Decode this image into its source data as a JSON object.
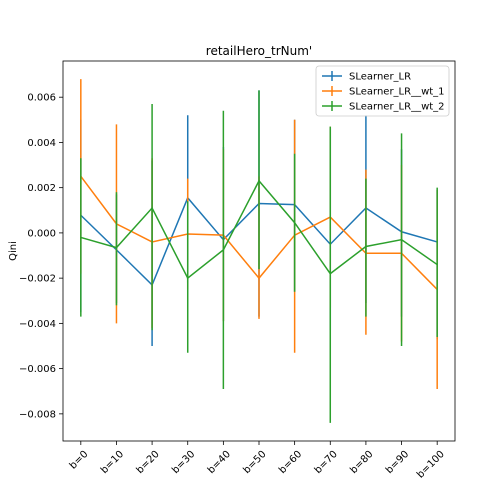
{
  "chart_data": {
    "type": "line",
    "title": "retailHero_trNum'",
    "xlabel": "",
    "ylabel": "Qini",
    "categories": [
      "b=0",
      "b=10",
      "b=20",
      "b=30",
      "b=40",
      "b=50",
      "b=60",
      "b=70",
      "b=80",
      "b=90",
      "b=100"
    ],
    "ylim": [
      -0.0092,
      0.0076
    ],
    "yticks": [
      -0.008,
      -0.006,
      -0.004,
      -0.002,
      0.0,
      0.002,
      0.004,
      0.006
    ],
    "ytick_labels": [
      "−0.008",
      "−0.006",
      "−0.004",
      "−0.002",
      "0.000",
      "0.002",
      "0.004",
      "0.006"
    ],
    "legend_position": "top-right",
    "grid": false,
    "series": [
      {
        "name": "SLearner_LR",
        "color": "#1f77b4",
        "values": [
          0.00078,
          -0.00075,
          -0.0023,
          0.00155,
          -0.0003,
          0.0013,
          0.00125,
          -0.0005,
          0.0011,
          5e-05,
          -0.0004
        ],
        "err_low": [
          -0.0035,
          -0.0031,
          -0.005,
          -0.0022,
          -0.0039,
          -0.0037,
          -0.0026,
          -0.0043,
          -0.0031,
          -0.0037,
          -0.0047
        ],
        "err_high": [
          0.005,
          0.0017,
          0.0032,
          0.0052,
          0.0038,
          0.0063,
          0.005,
          0.0046,
          0.0052,
          0.0037,
          0.0019
        ]
      },
      {
        "name": "SLearner_LR__wt_1",
        "color": "#ff7f0e",
        "values": [
          0.0025,
          0.0004,
          -0.0004,
          -5e-05,
          -0.0001,
          -0.002,
          -0.0001,
          0.0007,
          -0.0009,
          -0.0009,
          -0.0025
        ],
        "err_low": [
          -0.0018,
          -0.004,
          -0.0042,
          -0.0025,
          -0.0039,
          -0.0038,
          -0.0053,
          -0.0033,
          -0.0045,
          -0.0048,
          -0.0069
        ],
        "err_high": [
          0.0068,
          0.0048,
          0.0033,
          0.0024,
          0.0037,
          0.0025,
          0.005,
          0.0047,
          0.0028,
          0.003,
          0.0019
        ]
      },
      {
        "name": "SLearner_LR__wt_2",
        "color": "#2ca02c",
        "values": [
          -0.0002,
          -0.00065,
          0.0011,
          -0.002,
          -0.00075,
          0.0023,
          0.00045,
          -0.0018,
          -0.0006,
          -0.0003,
          -0.0014
        ],
        "err_low": [
          -0.0037,
          -0.0032,
          -0.0043,
          -0.0053,
          -0.0069,
          -0.0016,
          -0.0026,
          -0.0084,
          -0.0037,
          -0.005,
          -0.0046
        ],
        "err_high": [
          0.0033,
          0.0018,
          0.0057,
          0.0014,
          0.0054,
          0.0063,
          0.0035,
          0.0047,
          0.0024,
          0.0044,
          0.002
        ]
      }
    ]
  }
}
